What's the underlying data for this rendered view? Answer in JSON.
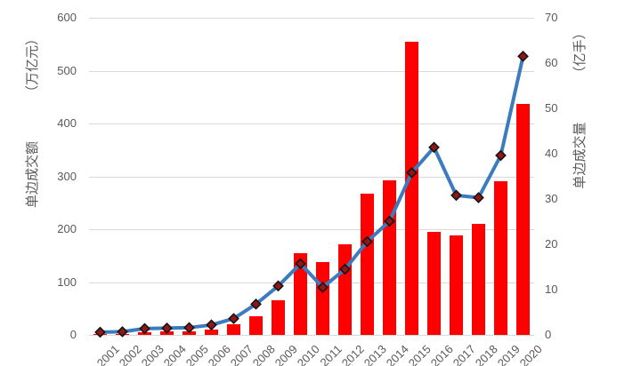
{
  "chart_data": {
    "type": "bar",
    "combo": "bar+line",
    "title": "",
    "categories": [
      "2001",
      "2002",
      "2003",
      "2004",
      "2005",
      "2006",
      "2007",
      "2008",
      "2009",
      "2010",
      "2011",
      "2012",
      "2013",
      "2014",
      "2015",
      "2016",
      "2017",
      "2018",
      "2019",
      "2020"
    ],
    "series": [
      {
        "name": "单边成交额",
        "type": "bar",
        "axis": "left",
        "unit": "万亿元",
        "color": "#ff0000",
        "values": [
          1.5,
          2.0,
          5.4,
          7.3,
          6.7,
          10.5,
          20.5,
          36.0,
          65.2,
          154.4,
          137.5,
          171.1,
          267.5,
          291.9,
          554.2,
          195.6,
          187.9,
          210.8,
          290.6,
          437.5
        ]
      },
      {
        "name": "单边成交量",
        "type": "line",
        "axis": "right",
        "unit": "亿手",
        "color": "#3c7cbe",
        "marker": "diamond",
        "marker_color": "#911717",
        "marker_border_color": "#141414",
        "values": [
          0.6,
          0.7,
          1.4,
          1.5,
          1.6,
          2.2,
          3.6,
          6.8,
          10.8,
          15.7,
          10.5,
          14.5,
          20.6,
          25.1,
          35.8,
          41.4,
          30.8,
          30.3,
          39.6,
          61.5
        ]
      }
    ],
    "left_axis": {
      "label": "单边成交额",
      "unit_label": "（万亿元）",
      "min": 0,
      "max": 600,
      "step": 100,
      "ticks": [
        "0",
        "100",
        "200",
        "300",
        "400",
        "500",
        "600"
      ]
    },
    "right_axis": {
      "label": "单边成交量",
      "unit_label": "（亿手）",
      "min": 0,
      "max": 70,
      "step": 10,
      "ticks": [
        "0",
        "10",
        "20",
        "30",
        "40",
        "50",
        "60",
        "70"
      ]
    },
    "grid": true,
    "legend": false,
    "text_color": "#595959",
    "grid_color": "#d9d9d9"
  }
}
